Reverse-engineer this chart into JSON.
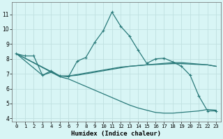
{
  "xlabel": "Humidex (Indice chaleur)",
  "xlim": [
    -0.5,
    23.5
  ],
  "ylim": [
    3.8,
    11.8
  ],
  "yticks": [
    4,
    5,
    6,
    7,
    8,
    9,
    10,
    11
  ],
  "xticks": [
    0,
    1,
    2,
    3,
    4,
    5,
    6,
    7,
    8,
    9,
    10,
    11,
    12,
    13,
    14,
    15,
    16,
    17,
    18,
    19,
    20,
    21,
    22,
    23
  ],
  "bg_color": "#d8f5f5",
  "grid_color": "#c0e0e0",
  "line_color": "#2a7a7a",
  "line0": {
    "x": [
      0,
      1,
      2,
      3,
      4,
      5,
      6,
      7,
      8,
      9,
      10,
      11,
      12,
      13,
      14,
      15,
      16,
      17,
      18,
      19,
      20,
      21,
      22,
      23
    ],
    "y": [
      8.35,
      8.2,
      8.2,
      6.9,
      7.2,
      6.85,
      6.8,
      7.85,
      8.1,
      9.1,
      9.9,
      11.15,
      10.2,
      9.55,
      8.6,
      7.7,
      8.0,
      8.05,
      7.8,
      7.5,
      6.9,
      5.5,
      4.5,
      4.5
    ]
  },
  "line1": {
    "x": [
      0,
      5,
      6,
      7,
      8,
      9,
      10,
      11,
      12,
      13,
      14,
      15,
      16,
      17,
      18,
      19,
      20,
      21,
      22,
      23
    ],
    "y": [
      8.35,
      6.85,
      6.85,
      6.9,
      7.0,
      7.1,
      7.2,
      7.3,
      7.4,
      7.5,
      7.55,
      7.6,
      7.65,
      7.7,
      7.75,
      7.75,
      7.7,
      7.65,
      7.6,
      7.5
    ]
  },
  "line2": {
    "x": [
      0,
      3,
      4,
      5,
      6,
      7,
      8,
      9,
      10,
      11,
      12,
      13,
      14,
      15,
      16,
      17,
      18,
      19,
      20,
      21,
      22,
      23
    ],
    "y": [
      8.35,
      6.9,
      7.1,
      6.85,
      6.85,
      6.95,
      7.05,
      7.15,
      7.25,
      7.35,
      7.45,
      7.5,
      7.55,
      7.6,
      7.62,
      7.65,
      7.68,
      7.68,
      7.65,
      7.62,
      7.6,
      7.5
    ]
  },
  "line3": {
    "x": [
      0,
      5,
      6,
      7,
      8,
      9,
      10,
      11,
      12,
      13,
      14,
      15,
      16,
      17,
      18,
      19,
      20,
      21,
      22,
      23
    ],
    "y": [
      8.35,
      6.8,
      6.65,
      6.4,
      6.15,
      5.9,
      5.65,
      5.4,
      5.15,
      4.9,
      4.7,
      4.55,
      4.4,
      4.35,
      4.35,
      4.4,
      4.45,
      4.5,
      4.6,
      4.55
    ]
  }
}
